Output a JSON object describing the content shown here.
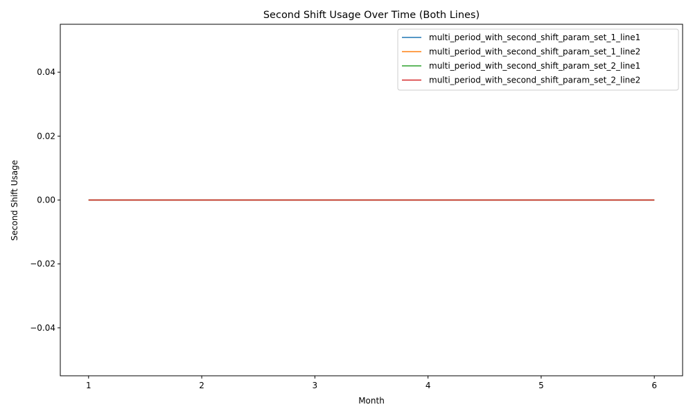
{
  "chart_data": {
    "type": "line",
    "title": "Second Shift Usage Over Time (Both Lines)",
    "xlabel": "Month",
    "ylabel": "Second Shift Usage",
    "x": [
      1,
      2,
      3,
      4,
      5,
      6
    ],
    "xticks": [
      "1",
      "2",
      "3",
      "4",
      "5",
      "6"
    ],
    "yticks": [
      -0.04,
      -0.02,
      0.0,
      0.02,
      0.04
    ],
    "ytick_labels": [
      "−0.04",
      "−0.02",
      "0.00",
      "0.02",
      "0.04"
    ],
    "xlim": [
      0.75,
      6.25
    ],
    "ylim": [
      -0.055,
      0.055
    ],
    "grid": false,
    "legend_position": "top-right",
    "series": [
      {
        "name": "multi_period_with_second_shift_param_set_1_line1",
        "color": "#1f77b4",
        "values": [
          0,
          0,
          0,
          0,
          0,
          0
        ]
      },
      {
        "name": "multi_period_with_second_shift_param_set_1_line2",
        "color": "#ff7f0e",
        "values": [
          0,
          0,
          0,
          0,
          0,
          0
        ]
      },
      {
        "name": "multi_period_with_second_shift_param_set_2_line1",
        "color": "#2ca02c",
        "values": [
          0,
          0,
          0,
          0,
          0,
          0
        ]
      },
      {
        "name": "multi_period_with_second_shift_param_set_2_line2",
        "color": "#d62728",
        "values": [
          0,
          0,
          0,
          0,
          0,
          0
        ]
      }
    ]
  }
}
